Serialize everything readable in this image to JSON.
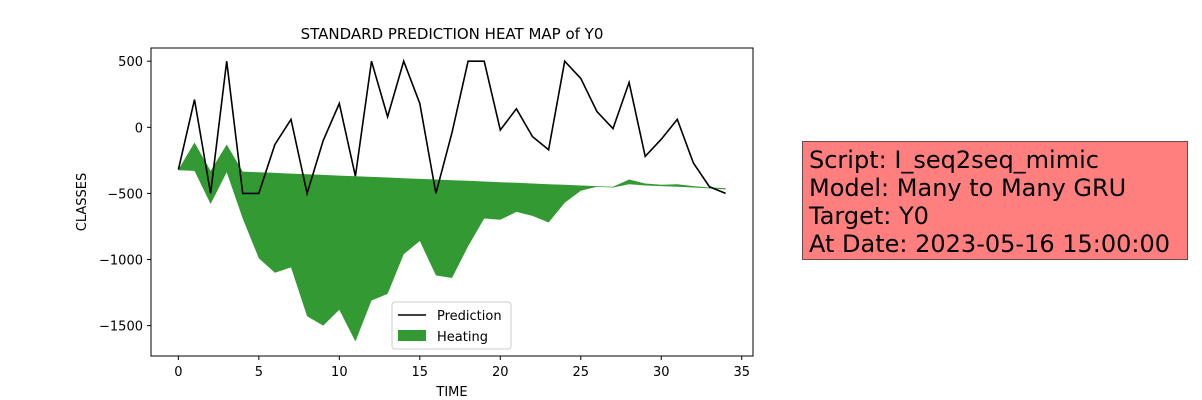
{
  "chart_data": {
    "type": "line",
    "title": "STANDARD PREDICTION HEAT MAP of Y0",
    "xlabel": "TIME",
    "ylabel": "CLASSES",
    "xlim": [
      -1.7,
      35.7
    ],
    "ylim": [
      -1730,
      600
    ],
    "xticks": [
      0,
      5,
      10,
      15,
      20,
      25,
      30,
      35
    ],
    "yticks": [
      500,
      0,
      -500,
      -1000,
      -1500
    ],
    "ytick_labels": [
      "500",
      "0",
      "−500",
      "−1000",
      "−1500"
    ],
    "legend_position": "lower-center",
    "x": [
      0,
      1,
      2,
      3,
      4,
      5,
      6,
      7,
      8,
      9,
      10,
      11,
      12,
      13,
      14,
      15,
      16,
      17,
      18,
      19,
      20,
      21,
      22,
      23,
      24,
      25,
      26,
      27,
      28,
      29,
      30,
      31,
      32,
      33,
      34
    ],
    "series": [
      {
        "name": "Prediction",
        "kind": "line",
        "color": "#000000",
        "values": [
          -320,
          210,
          -500,
          500,
          -500,
          -500,
          -130,
          60,
          -500,
          -100,
          180,
          -370,
          500,
          80,
          500,
          180,
          -500,
          -40,
          500,
          500,
          -20,
          140,
          -70,
          -170,
          500,
          370,
          120,
          -10,
          340,
          -220,
          -90,
          60,
          -270,
          -450,
          -500
        ]
      },
      {
        "name": "Heating",
        "kind": "area",
        "color": "#339933",
        "upper": [
          -320,
          -115,
          -330,
          -130,
          -335,
          -340,
          -345,
          -350,
          -355,
          -360,
          -365,
          -370,
          -375,
          -380,
          -385,
          -390,
          -395,
          -400,
          -405,
          -410,
          -415,
          -420,
          -425,
          -430,
          -435,
          -440,
          -445,
          -450,
          -395,
          -425,
          -435,
          -430,
          -445,
          -455,
          -460
        ],
        "lower": [
          -325,
          -330,
          -580,
          -340,
          -690,
          -990,
          -1100,
          -1060,
          -1430,
          -1500,
          -1380,
          -1620,
          -1310,
          -1260,
          -960,
          -860,
          -1120,
          -1140,
          -900,
          -690,
          -700,
          -640,
          -670,
          -720,
          -570,
          -480,
          -450,
          -455,
          -430,
          -440,
          -445,
          -450,
          -455,
          -462,
          -470
        ]
      }
    ]
  },
  "info_box": {
    "lines": [
      "Script: I_seq2seq_mimic",
      "Model: Many to Many GRU",
      "Target: Y0",
      "At Date: 2023-05-16 15:00:00"
    ],
    "background": "#ff7f7f"
  }
}
